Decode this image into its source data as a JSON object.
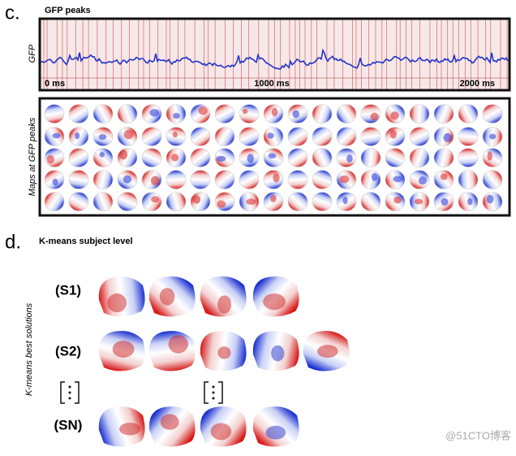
{
  "panel_c": {
    "label": "c.",
    "title": "GFP peaks",
    "trace_label": "GFP",
    "time_labels": [
      "0 ms",
      "1000 ms",
      "2000 ms"
    ],
    "maps_label": "Maps at GFP peaks"
  },
  "panel_d": {
    "label": "d.",
    "title": "K-means subject level",
    "side_label": "K-means best solutions",
    "rows": [
      "(S1)",
      "(S2)",
      "(SN)"
    ]
  },
  "watermark": "@51CTO博客"
}
